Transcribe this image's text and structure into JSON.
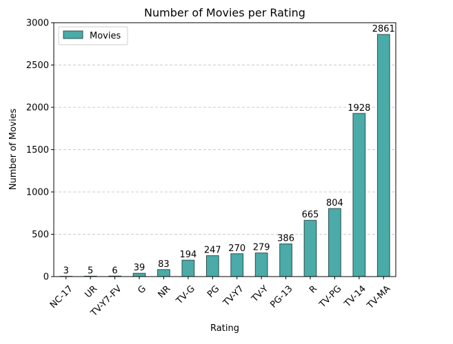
{
  "chart_data": {
    "type": "bar",
    "title": "Number of Movies per Rating",
    "xlabel": "Rating",
    "ylabel": "Number of Movies",
    "categories": [
      "NC-17",
      "UR",
      "TV-Y7-FV",
      "G",
      "NR",
      "TV-G",
      "PG",
      "TV-Y7",
      "TV-Y",
      "PG-13",
      "R",
      "TV-PG",
      "TV-14",
      "TV-MA"
    ],
    "series": [
      {
        "name": "Movies",
        "values": [
          3,
          5,
          6,
          39,
          83,
          194,
          247,
          270,
          279,
          386,
          665,
          804,
          1928,
          2861
        ]
      }
    ],
    "data_labels": [
      "3",
      "5",
      "6",
      "39",
      "83",
      "194",
      "247",
      "270",
      "279",
      "386",
      "665",
      "804",
      "1928",
      "2861"
    ],
    "ylim": [
      0,
      3000
    ],
    "yticks": [
      0,
      500,
      1000,
      1500,
      2000,
      2500,
      3000
    ],
    "ytick_labels": [
      "0",
      "500",
      "1000",
      "1500",
      "2000",
      "2500",
      "3000"
    ],
    "grid": "y-dashed",
    "legend_position": "top-left",
    "colors": {
      "bar_fill": "#4aaba8",
      "bar_stroke": "#2f4f4f",
      "grid": "#c8c8c8",
      "axis": "#000000"
    }
  }
}
